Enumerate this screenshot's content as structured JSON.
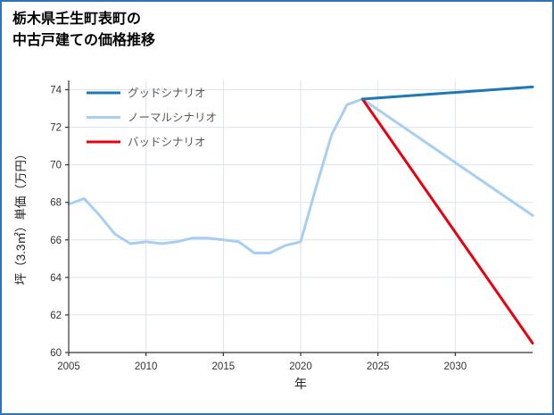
{
  "page": {
    "border_color": "#2f74b8",
    "background": "#ffffff"
  },
  "header": {
    "title_line1": "栃木県壬生町表町の",
    "title_line2": "中古戸建ての価格推移"
  },
  "chart_data": {
    "type": "line",
    "title": "栃木県壬生町表町の中古戸建ての価格推移",
    "xlabel": "年",
    "ylabel": "坪（3.3㎡）単価（万円）",
    "xlim": [
      2005,
      2035
    ],
    "ylim": [
      60,
      74.5
    ],
    "xticks": [
      2005,
      2010,
      2015,
      2020,
      2025,
      2030
    ],
    "yticks": [
      60,
      62,
      64,
      66,
      68,
      70,
      72,
      74
    ],
    "grid": true,
    "legend_position": "upper-left",
    "style": {
      "grid_color": "#dbe3ee",
      "axis_color": "#333333",
      "tick_label_color": "#333333",
      "legend_text_color": "#595959"
    },
    "series": [
      {
        "name": "グッドシナリオ",
        "slug": "good-scenario",
        "color": "#1f77b4",
        "line_width": 3,
        "z": 3,
        "x": [
          2024,
          2035
        ],
        "y": [
          73.5,
          74.15
        ]
      },
      {
        "name": "ノーマルシナリオ",
        "slug": "normal-scenario",
        "color": "#a8cef1",
        "line_width": 3,
        "z": 1,
        "x": [
          2005,
          2006,
          2007,
          2008,
          2009,
          2010,
          2011,
          2012,
          2013,
          2014,
          2015,
          2016,
          2017,
          2018,
          2019,
          2020,
          2021,
          2022,
          2023,
          2024,
          2035
        ],
        "y": [
          67.9,
          68.2,
          67.3,
          66.3,
          65.8,
          65.9,
          65.8,
          65.9,
          66.1,
          66.1,
          66.0,
          65.9,
          65.3,
          65.3,
          65.7,
          65.9,
          68.8,
          71.6,
          73.2,
          73.5,
          67.3
        ]
      },
      {
        "name": "バッドシナリオ",
        "slug": "bad-scenario",
        "color": "#e8000d",
        "line_width": 3,
        "z": 2,
        "x": [
          2024,
          2035
        ],
        "y": [
          73.5,
          60.5
        ]
      }
    ]
  }
}
